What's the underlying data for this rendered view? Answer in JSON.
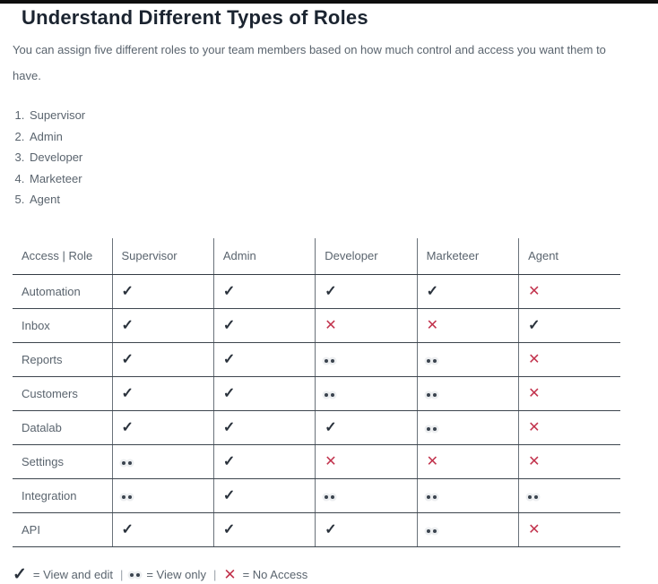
{
  "page": {
    "title": "Understand Different Types of Roles",
    "intro": "You can assign five different roles to your team members based on how much control and access you want them to have."
  },
  "roles_list": [
    "Supervisor",
    "Admin",
    "Developer",
    "Marketeer",
    "Agent"
  ],
  "table": {
    "corner_header": "Access | Role",
    "columns": [
      "Supervisor",
      "Admin",
      "Developer",
      "Marketeer",
      "Agent"
    ],
    "rows": [
      {
        "label": "Automation",
        "cells": [
          "check",
          "check",
          "check",
          "check",
          "cross"
        ]
      },
      {
        "label": "Inbox",
        "cells": [
          "check",
          "check",
          "cross",
          "cross",
          "check"
        ]
      },
      {
        "label": "Reports",
        "cells": [
          "check",
          "check",
          "dots",
          "dots",
          "cross"
        ]
      },
      {
        "label": "Customers",
        "cells": [
          "check",
          "check",
          "dots",
          "dots",
          "cross"
        ]
      },
      {
        "label": "Datalab",
        "cells": [
          "check",
          "check",
          "check",
          "dots",
          "cross"
        ]
      },
      {
        "label": "Settings",
        "cells": [
          "dots",
          "check",
          "cross",
          "cross",
          "cross"
        ]
      },
      {
        "label": "Integration",
        "cells": [
          "dots",
          "check",
          "dots",
          "dots",
          "dots"
        ]
      },
      {
        "label": "API",
        "cells": [
          "check",
          "check",
          "check",
          "dots",
          "cross"
        ]
      }
    ]
  },
  "symbols": {
    "check": "✓",
    "cross": "✕"
  },
  "legend": {
    "check_label": "= View and edit",
    "dots_label": "= View only",
    "cross_label": "= No Access",
    "separator": "|"
  },
  "colors": {
    "cross_red": "#c2334d",
    "check_dark": "#2a323c",
    "text_gray": "#5a646e",
    "title_dark": "#1b2430"
  }
}
